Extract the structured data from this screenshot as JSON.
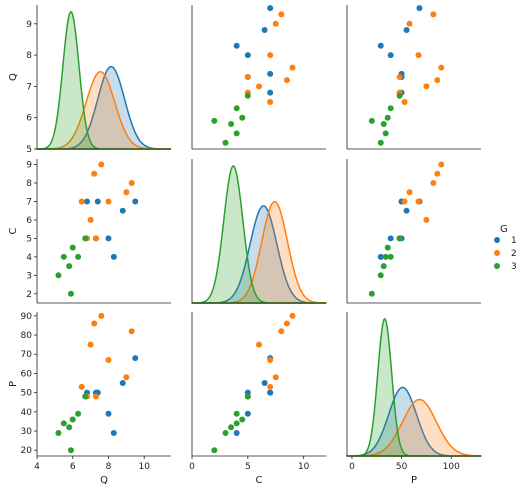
{
  "chart_data": {
    "type": "pairplot",
    "variables": [
      "Q",
      "C",
      "P"
    ],
    "hue": {
      "title": "G",
      "levels": [
        "1",
        "2",
        "3"
      ],
      "colors": [
        "#1f77b4",
        "#ff7f0e",
        "#2ca02c"
      ]
    },
    "axes": {
      "Q": {
        "lim": [
          4,
          11.5
        ],
        "ticks": [
          4,
          6,
          8,
          10
        ],
        "row_lim": [
          5,
          9.6
        ],
        "row_ticks": [
          5,
          6,
          7,
          8,
          9
        ]
      },
      "C": {
        "lim": [
          0,
          12
        ],
        "ticks": [
          0,
          5,
          10
        ],
        "row_lim": [
          1.5,
          9.3
        ],
        "row_ticks": [
          2,
          3,
          4,
          5,
          6,
          7,
          8,
          9
        ]
      },
      "P": {
        "lim": [
          -5,
          130
        ],
        "ticks": [
          0,
          50,
          100
        ],
        "row_lim": [
          17,
          92
        ],
        "row_ticks": [
          20,
          30,
          40,
          50,
          60,
          70,
          80,
          90
        ]
      }
    },
    "points": [
      {
        "g": "1",
        "Q": 9.5,
        "C": 7.0,
        "P": 68
      },
      {
        "g": "1",
        "Q": 8.3,
        "C": 4.0,
        "P": 29
      },
      {
        "g": "1",
        "Q": 6.8,
        "C": 7.0,
        "P": 50
      },
      {
        "g": "1",
        "Q": 8.0,
        "C": 5.0,
        "P": 39
      },
      {
        "g": "1",
        "Q": 8.8,
        "C": 6.5,
        "P": 55
      },
      {
        "g": "1",
        "Q": 7.3,
        "C": 5.0,
        "P": 50
      },
      {
        "g": "1",
        "Q": 7.4,
        "C": 7.0,
        "P": 50
      },
      {
        "g": "2",
        "Q": 7.2,
        "C": 8.5,
        "P": 86
      },
      {
        "g": "2",
        "Q": 7.6,
        "C": 9.0,
        "P": 90
      },
      {
        "g": "2",
        "Q": 9.3,
        "C": 8.0,
        "P": 82
      },
      {
        "g": "2",
        "Q": 9.0,
        "C": 7.5,
        "P": 58
      },
      {
        "g": "2",
        "Q": 7.0,
        "C": 6.0,
        "P": 75
      },
      {
        "g": "2",
        "Q": 8.0,
        "C": 7.0,
        "P": 67
      },
      {
        "g": "2",
        "Q": 6.5,
        "C": 7.0,
        "P": 53
      },
      {
        "g": "2",
        "Q": 6.8,
        "C": 5.0,
        "P": 48
      },
      {
        "g": "2",
        "Q": 7.3,
        "C": 5.0,
        "P": 48
      },
      {
        "g": "3",
        "Q": 5.2,
        "C": 3.0,
        "P": 29
      },
      {
        "g": "3",
        "Q": 5.5,
        "C": 4.0,
        "P": 34
      },
      {
        "g": "3",
        "Q": 5.8,
        "C": 3.5,
        "P": 32
      },
      {
        "g": "3",
        "Q": 5.9,
        "C": 2.0,
        "P": 20
      },
      {
        "g": "3",
        "Q": 6.0,
        "C": 4.5,
        "P": 36
      },
      {
        "g": "3",
        "Q": 6.3,
        "C": 4.0,
        "P": 39
      },
      {
        "g": "3",
        "Q": 6.7,
        "C": 5.0,
        "P": 48
      }
    ],
    "kde": {
      "1": {
        "Q": {
          "mean": 8.15,
          "sd": 0.75
        },
        "C": {
          "mean": 6.4,
          "sd": 1.2
        },
        "P": {
          "mean": 51,
          "sd": 14
        }
      },
      "2": {
        "Q": {
          "mean": 7.55,
          "sd": 0.8
        },
        "C": {
          "mean": 7.4,
          "sd": 1.15
        },
        "P": {
          "mean": 68,
          "sd": 17
        }
      },
      "3": {
        "Q": {
          "mean": 5.9,
          "sd": 0.45
        },
        "C": {
          "mean": 3.7,
          "sd": 0.85
        },
        "P": {
          "mean": 33,
          "sd": 7
        }
      }
    }
  }
}
